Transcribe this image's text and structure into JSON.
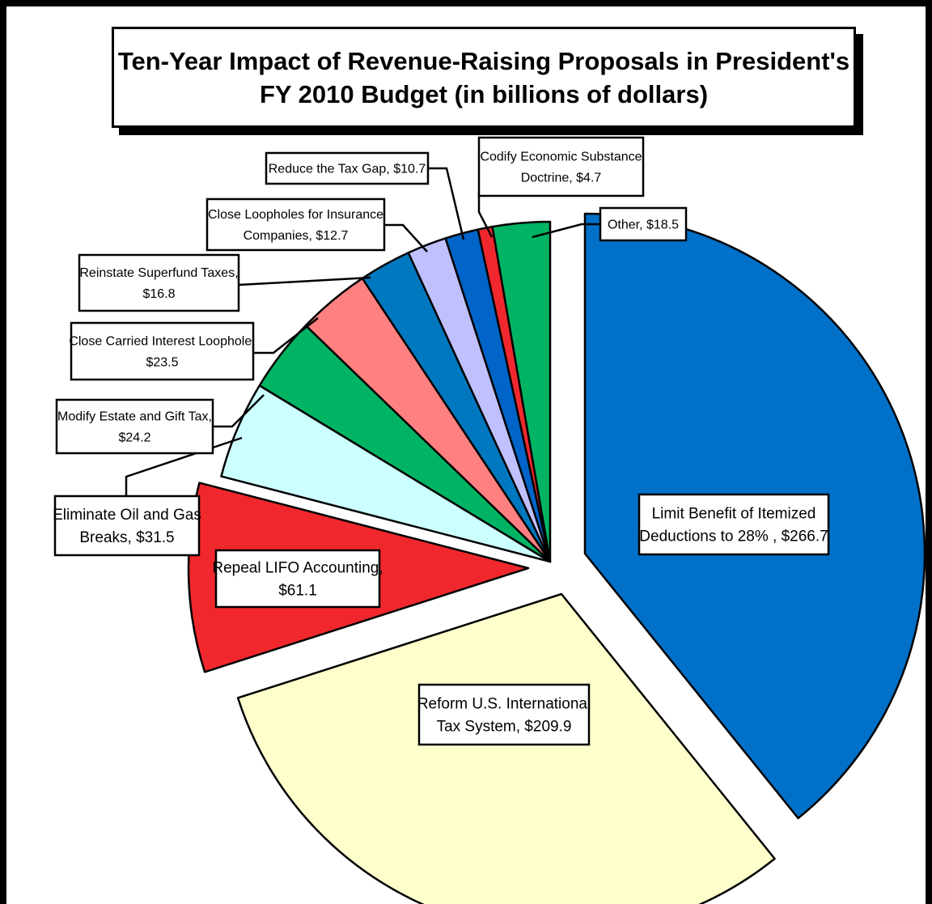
{
  "chart_data": {
    "type": "pie",
    "title_lines": [
      "Ten-Year Impact of Revenue-Raising Proposals in President's",
      "FY 2010 Budget (in billions of dollars)"
    ],
    "slices": [
      {
        "id": "itemized",
        "value": 266.7,
        "color": "#0070C8",
        "label_lines": [
          "Limit Benefit of Itemized",
          "Deductions to 28% ,  $266.7"
        ]
      },
      {
        "id": "international",
        "value": 209.9,
        "color": "#FFFFCC",
        "label_lines": [
          "Reform U.S. International",
          "Tax System,  $209.9"
        ]
      },
      {
        "id": "lifo",
        "value": 61.1,
        "color": "#F0282D",
        "label_lines": [
          "Repeal LIFO Accounting,",
          "$61.1"
        ]
      },
      {
        "id": "oil-gas",
        "value": 31.5,
        "color": "#CCFFFF",
        "label_lines": [
          "Eliminate Oil and Gas",
          "Breaks, $31.5"
        ]
      },
      {
        "id": "estate-gift",
        "value": 24.2,
        "color": "#00B464",
        "label_lines": [
          "Modify Estate and Gift Tax,",
          "$24.2"
        ]
      },
      {
        "id": "carried-interest",
        "value": 23.5,
        "color": "#FF8080",
        "label_lines": [
          "Close Carried Interest Loophole,",
          "$23.5"
        ]
      },
      {
        "id": "superfund",
        "value": 16.8,
        "color": "#0078C0",
        "label_lines": [
          "Reinstate Superfund Taxes,",
          "$16.8"
        ]
      },
      {
        "id": "insurance",
        "value": 12.7,
        "color": "#C0C0FF",
        "label_lines": [
          "Close Loopholes for Insurance",
          "Companies, $12.7"
        ]
      },
      {
        "id": "tax-gap",
        "value": 10.7,
        "color": "#0064C8",
        "label_lines": [
          "Reduce the Tax Gap, $10.7"
        ]
      },
      {
        "id": "economic-substance",
        "value": 4.7,
        "color": "#F0282D",
        "label_lines": [
          "Codify Economic Substance",
          "Doctrine, $4.7"
        ]
      },
      {
        "id": "other",
        "value": 18.5,
        "color": "#00B464",
        "label_lines": [
          "Other,  $18.5"
        ]
      }
    ]
  }
}
